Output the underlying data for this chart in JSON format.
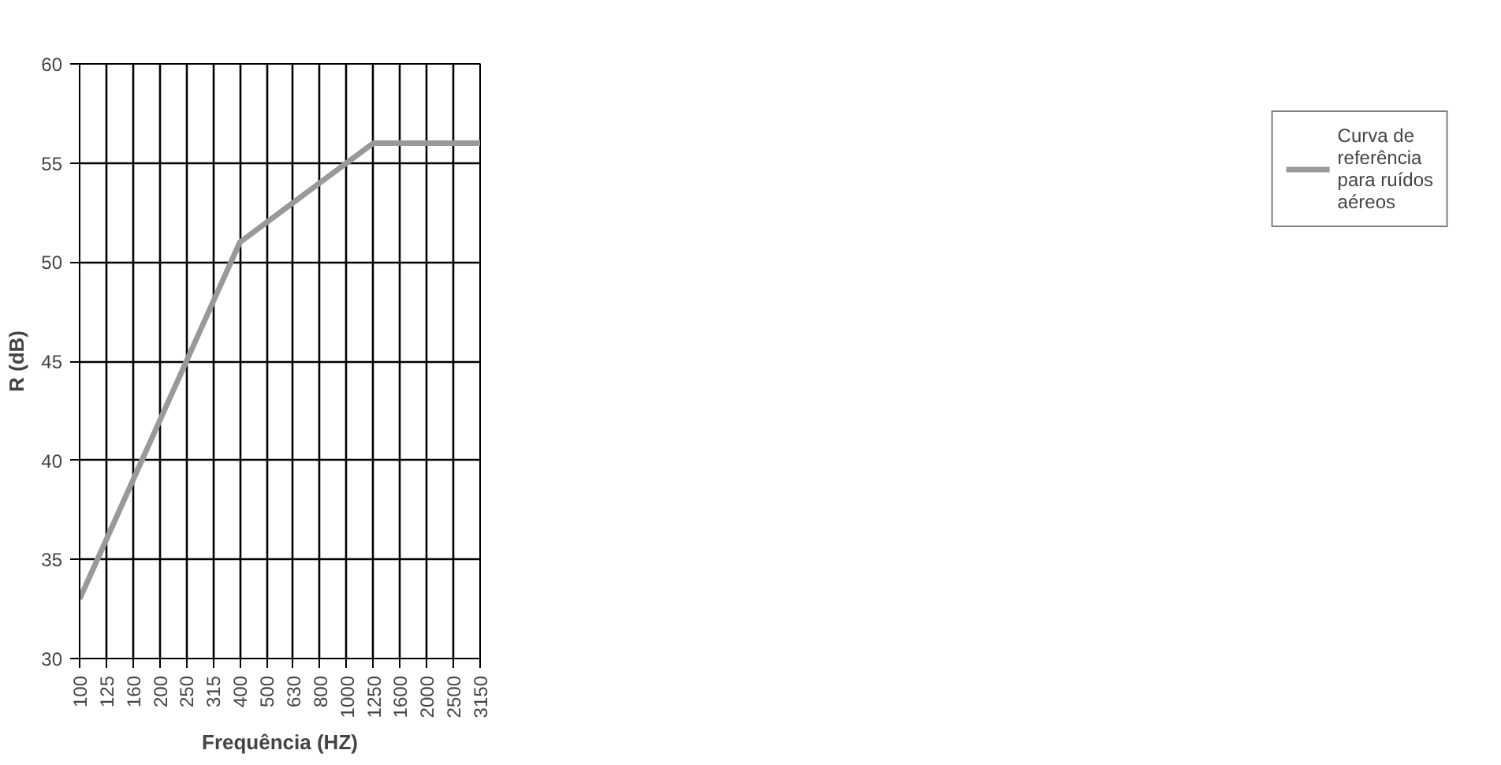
{
  "chart_data": {
    "type": "line",
    "xlabel": "Frequência (HZ)",
    "ylabel": "R (dB)",
    "categories": [
      "100",
      "125",
      "160",
      "200",
      "250",
      "315",
      "400",
      "500",
      "630",
      "800",
      "1000",
      "1250",
      "1600",
      "2000",
      "2500",
      "3150"
    ],
    "series": [
      {
        "name": "Curva de referência para ruídos aéreos",
        "color": "#999999",
        "values": [
          33,
          36,
          39,
          42,
          45,
          48,
          51,
          52,
          53,
          54,
          55,
          56,
          56,
          56,
          56,
          56
        ]
      }
    ],
    "ylim": [
      30,
      60
    ],
    "yticks": [
      30,
      35,
      40,
      45,
      50,
      55,
      60
    ],
    "grid": true,
    "legend": "right",
    "marker": "none",
    "line_style": "solid"
  }
}
